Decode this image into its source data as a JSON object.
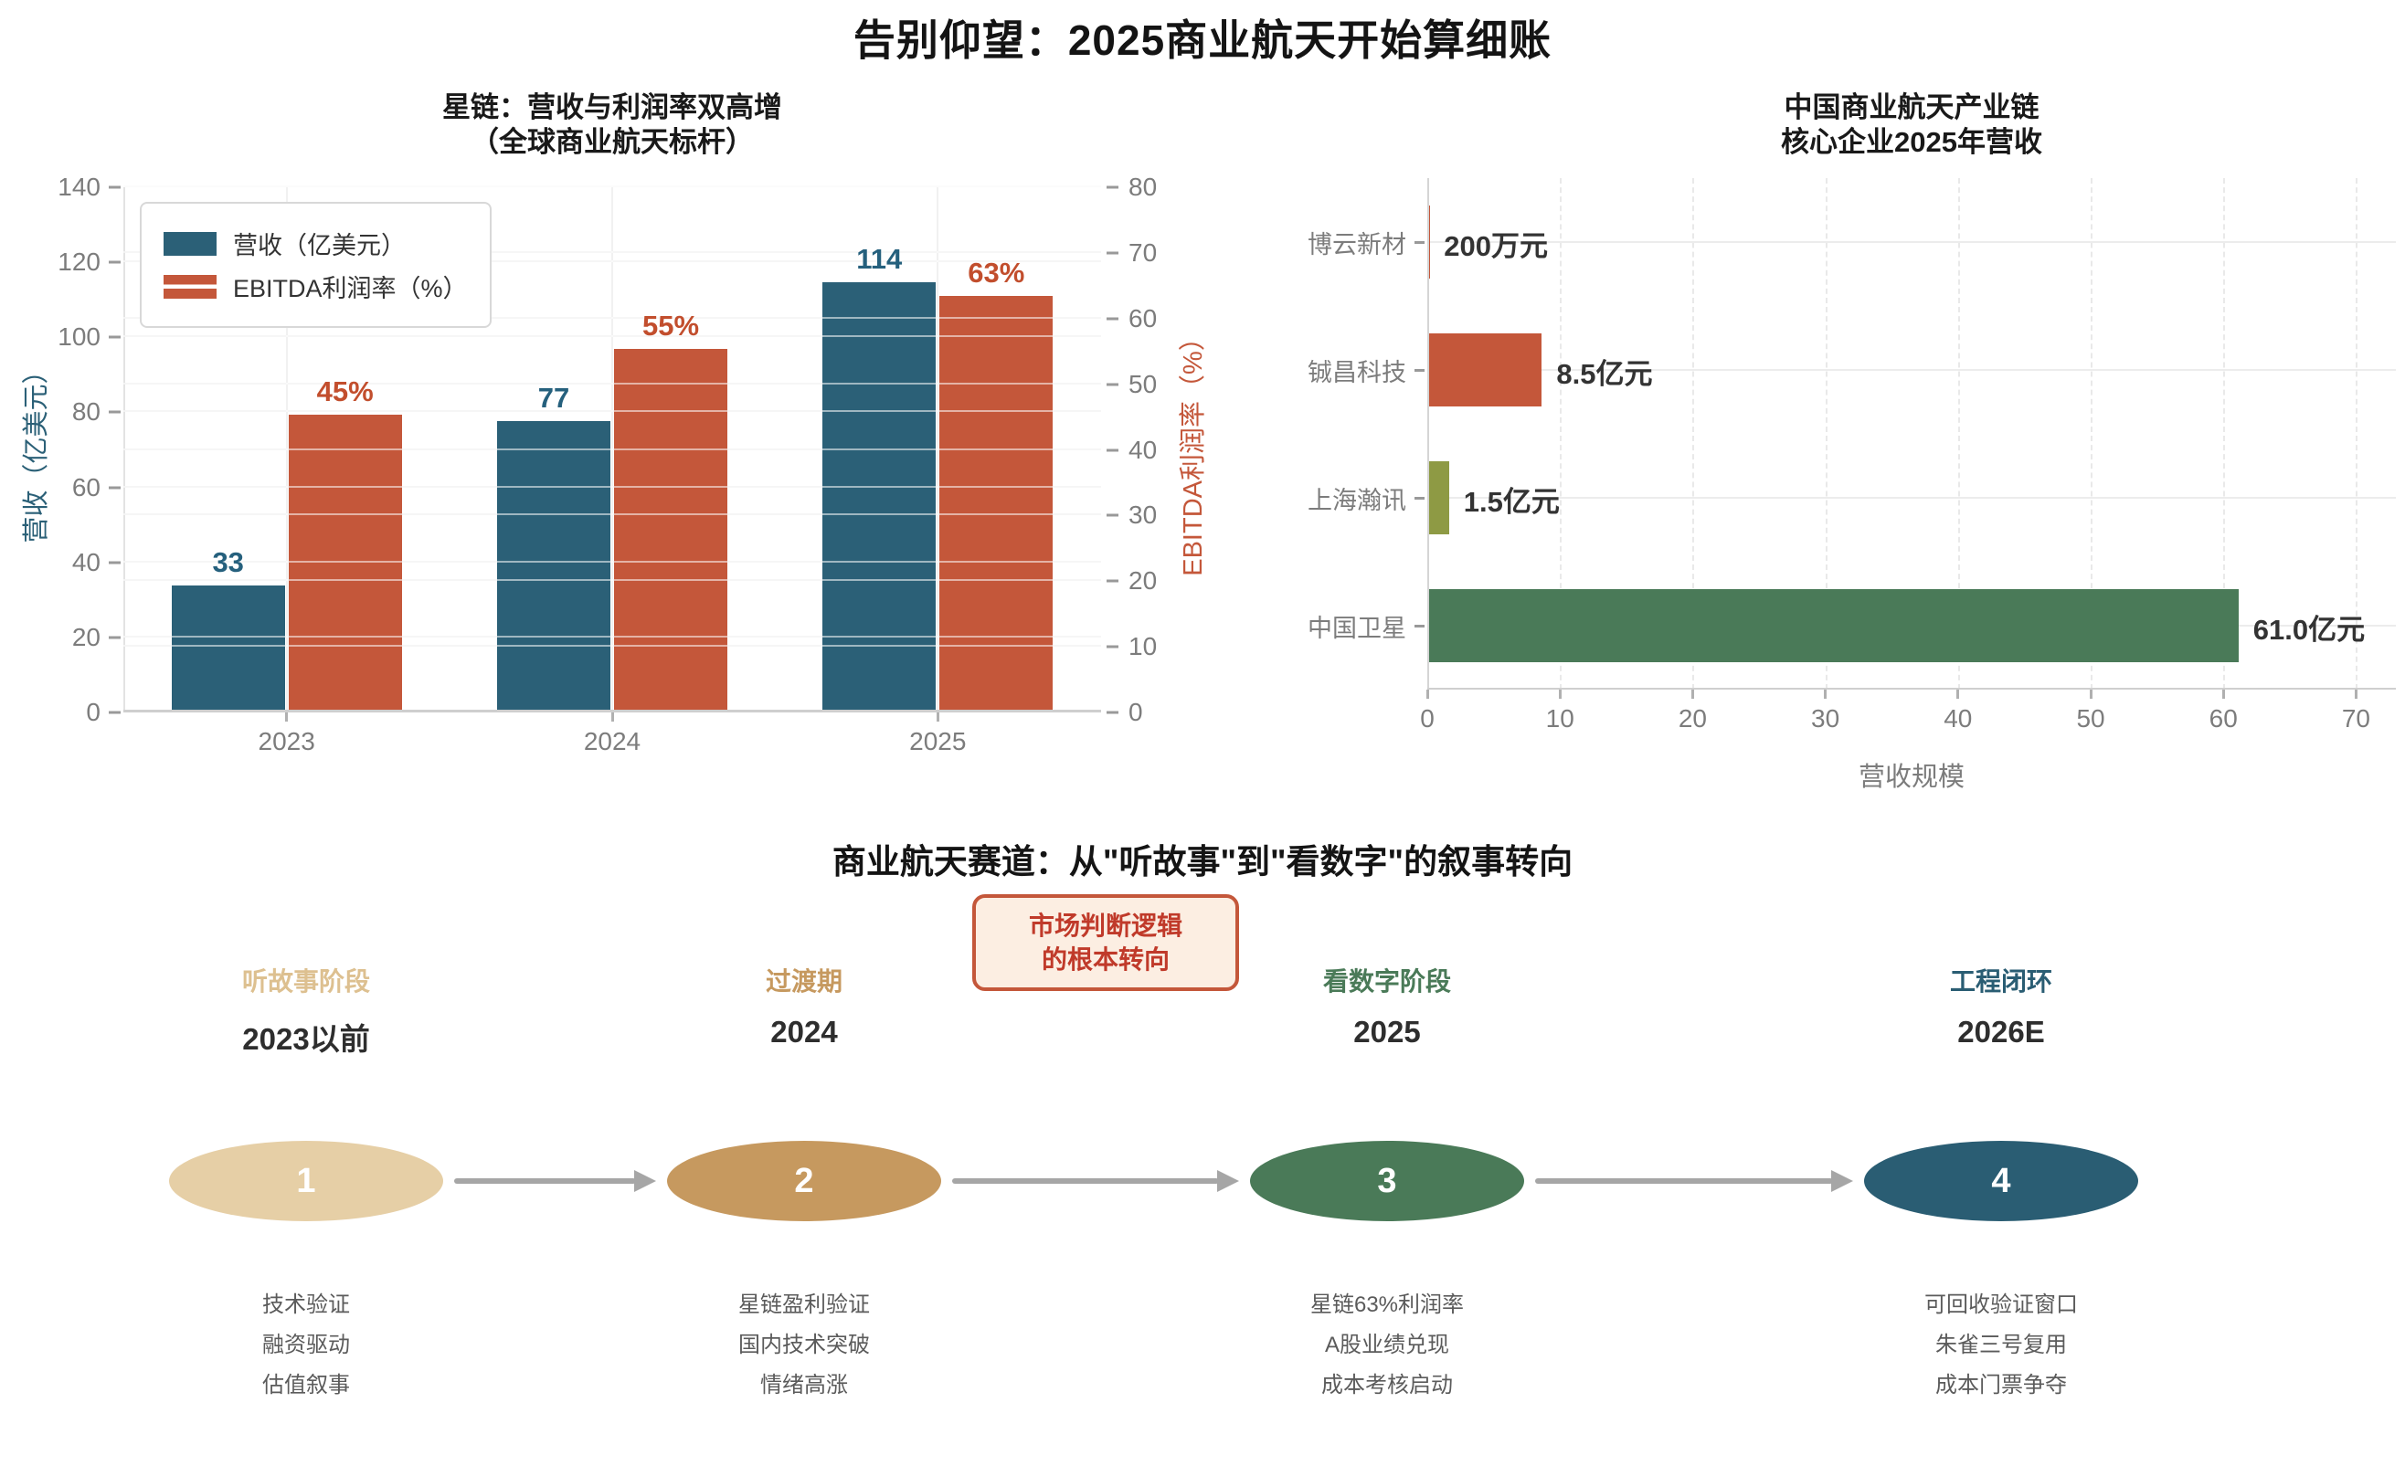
{
  "page_title": "告别仰望：2025商业航天开始算细账",
  "chart_data": [
    {
      "id": "starlink-dual-axis",
      "type": "bar",
      "title_lines": [
        "星链：营收与利润率双高增",
        "（全球商业航天标杆）"
      ],
      "categories": [
        "2023",
        "2024",
        "2025"
      ],
      "series": [
        {
          "name": "营收（亿美元）",
          "axis": "left",
          "color": "#2b6077",
          "label_color": "#25607d",
          "values": [
            33,
            77,
            114
          ],
          "labels": [
            "33",
            "77",
            "114"
          ]
        },
        {
          "name": "EBITDA利润率（%）",
          "axis": "right",
          "color": "#c4573a",
          "label_color": "#c24e2d",
          "values": [
            45,
            55,
            63
          ],
          "labels": [
            "45%",
            "55%",
            "63%"
          ]
        }
      ],
      "left_axis": {
        "label": "营收（亿美元）",
        "ticks": [
          0,
          20,
          40,
          60,
          80,
          100,
          120,
          140
        ],
        "max": 140,
        "color": "#2b6077"
      },
      "right_axis": {
        "label": "EBITDA利润率（%）",
        "ticks": [
          0,
          10,
          20,
          30,
          40,
          50,
          60,
          70,
          80
        ],
        "max": 80,
        "color": "#c4573a"
      },
      "legend_position": "upper left",
      "grid": true
    },
    {
      "id": "china-chain-revenue",
      "type": "bar-horizontal",
      "title_lines": [
        "中国商业航天产业链",
        "核心企业2025年营收"
      ],
      "categories": [
        "博云新材",
        "铖昌科技",
        "上海瀚讯",
        "中国卫星"
      ],
      "values": [
        0.02,
        8.5,
        1.5,
        61.0
      ],
      "labels": [
        "200万元",
        "8.5亿元",
        "1.5亿元",
        "61.0亿元"
      ],
      "colors": [
        "#c4573a",
        "#c4573a",
        "#8e9a44",
        "#4a7a58"
      ],
      "xlabel": "营收规模",
      "x_ticks": [
        0,
        10,
        20,
        30,
        40,
        50,
        60,
        70
      ],
      "x_max": 73,
      "grid": true
    }
  ],
  "flow": {
    "title": "商业航天赛道：从\"听故事\"到\"看数字\"的叙事转向",
    "callout": {
      "lines": [
        "市场判断逻辑",
        "的根本转向"
      ],
      "border_color": "#c4573a",
      "bg_color": "#fceee2",
      "text_color": "#c03a2a"
    },
    "arrow_color": "#a6a6a6",
    "stages": [
      {
        "label": "听故事阶段",
        "label_color": "#ddc090",
        "year": "2023以前",
        "num": "1",
        "ellipse_color": "#e6cfa6",
        "items": [
          "技术验证",
          "融资驱动",
          "估值叙事"
        ]
      },
      {
        "label": "过渡期",
        "label_color": "#c6995f",
        "year": "2024",
        "num": "2",
        "ellipse_color": "#c6995f",
        "items": [
          "星链盈利验证",
          "国内技术突破",
          "情绪高涨"
        ]
      },
      {
        "label": "看数字阶段",
        "label_color": "#4a7a58",
        "year": "2025",
        "num": "3",
        "ellipse_color": "#4a7a58",
        "items": [
          "星链63%利润率",
          "A股业绩兑现",
          "成本考核启动"
        ]
      },
      {
        "label": "工程闭环",
        "label_color": "#2a5d73",
        "year": "2026E",
        "num": "4",
        "ellipse_color": "#2a5d73",
        "items": [
          "可回收验证窗口",
          "朱雀三号复用",
          "成本门票争夺"
        ]
      }
    ]
  }
}
